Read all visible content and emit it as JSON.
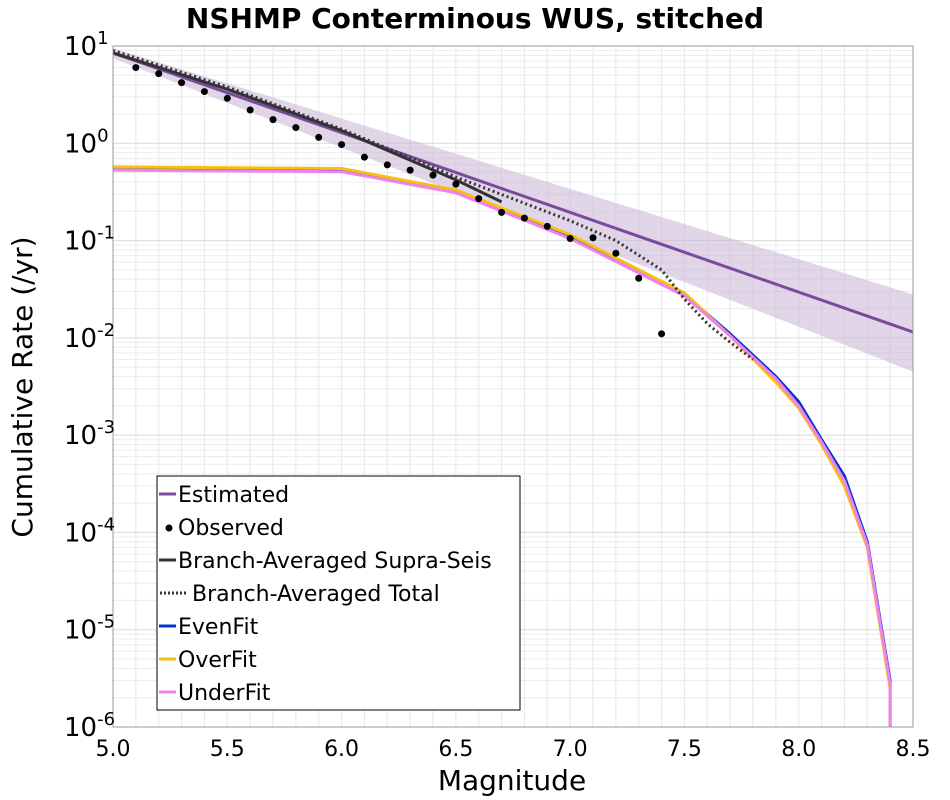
{
  "chart_data": {
    "type": "line",
    "title": "NSHMP Conterminous WUS, stitched",
    "xlabel": "Magnitude",
    "ylabel": "Cumulative Rate (/yr)",
    "xlim": [
      5.0,
      8.5
    ],
    "ylim": [
      1e-06,
      10
    ],
    "yscale": "log",
    "grid": true,
    "legend_position": "bottom-left",
    "x_ticks": [
      {
        "value": 5.0,
        "label": "5.0"
      },
      {
        "value": 5.5,
        "label": "5.5"
      },
      {
        "value": 6.0,
        "label": "6.0"
      },
      {
        "value": 6.5,
        "label": "6.5"
      },
      {
        "value": 7.0,
        "label": "7.0"
      },
      {
        "value": 7.5,
        "label": "7.5"
      },
      {
        "value": 8.0,
        "label": "8.0"
      },
      {
        "value": 8.5,
        "label": "8.5"
      }
    ],
    "y_ticks": [
      {
        "exp": 1,
        "base": "10",
        "sup": "1"
      },
      {
        "exp": 0,
        "base": "10",
        "sup": "0"
      },
      {
        "exp": -1,
        "base": "10",
        "sup": "-1"
      },
      {
        "exp": -2,
        "base": "10",
        "sup": "-2"
      },
      {
        "exp": -3,
        "base": "10",
        "sup": "-3"
      },
      {
        "exp": -4,
        "base": "10",
        "sup": "-4"
      },
      {
        "exp": -5,
        "base": "10",
        "sup": "-5"
      },
      {
        "exp": -6,
        "base": "10",
        "sup": "-6"
      }
    ],
    "estimated_band": {
      "color": "#c7b4d6",
      "x": [
        5.0,
        8.5
      ],
      "lower": [
        7.5,
        0.0045
      ],
      "upper": [
        9.5,
        0.028
      ]
    },
    "series": [
      {
        "name": "Estimated",
        "style": "solid",
        "color": "#7b4a9a",
        "x": [
          5.0,
          8.5
        ],
        "y": [
          8.5,
          0.0115
        ]
      },
      {
        "name": "Observed",
        "style": "points",
        "color": "#000000",
        "x": [
          5.1,
          5.2,
          5.3,
          5.4,
          5.5,
          5.6,
          5.7,
          5.8,
          5.9,
          6.0,
          6.1,
          6.2,
          6.3,
          6.4,
          6.5,
          6.6,
          6.7,
          6.8,
          6.9,
          7.0,
          7.1,
          7.2,
          7.3,
          7.4
        ],
        "y": [
          6.0,
          5.2,
          4.2,
          3.4,
          2.9,
          2.2,
          1.75,
          1.45,
          1.15,
          0.97,
          0.72,
          0.6,
          0.53,
          0.47,
          0.38,
          0.27,
          0.195,
          0.17,
          0.14,
          0.105,
          0.107,
          0.074,
          0.041,
          0.011
        ]
      },
      {
        "name": "Branch-Averaged Supra-Seis",
        "style": "solid",
        "color": "#333333",
        "x": [
          5.0,
          5.5,
          6.0,
          6.5,
          6.7
        ],
        "y": [
          8.5,
          3.6,
          1.35,
          0.42,
          0.25
        ]
      },
      {
        "name": "Branch-Averaged Total",
        "style": "dotted",
        "color": "#333333",
        "x": [
          5.0,
          5.5,
          6.0,
          6.5,
          7.0,
          7.2,
          7.4,
          7.5,
          7.6,
          7.7,
          7.8
        ],
        "y": [
          9.0,
          3.8,
          1.4,
          0.45,
          0.16,
          0.1,
          0.05,
          0.025,
          0.014,
          0.009,
          0.006
        ]
      },
      {
        "name": "EvenFit",
        "style": "solid",
        "color": "#0033cc",
        "x": [
          5.0,
          6.0,
          6.5,
          7.0,
          7.5,
          7.7,
          7.9,
          8.0,
          8.1,
          8.2,
          8.3,
          8.4,
          8.4
        ],
        "y": [
          0.55,
          0.53,
          0.32,
          0.11,
          0.028,
          0.011,
          0.004,
          0.0022,
          0.0009,
          0.00038,
          8e-05,
          3e-06,
          1e-06
        ]
      },
      {
        "name": "OverFit",
        "style": "solid",
        "color": "#f5c010",
        "x": [
          5.0,
          6.0,
          6.5,
          7.0,
          7.5,
          7.7,
          7.9,
          8.0,
          8.1,
          8.2,
          8.3,
          8.4,
          8.4
        ],
        "y": [
          0.57,
          0.55,
          0.33,
          0.115,
          0.029,
          0.0105,
          0.0035,
          0.0019,
          0.0008,
          0.0003,
          7e-05,
          2.5e-06,
          1e-06
        ]
      },
      {
        "name": "UnderFit",
        "style": "solid",
        "color": "#ee82ee",
        "x": [
          5.0,
          6.0,
          6.5,
          7.0,
          7.5,
          7.7,
          7.9,
          8.0,
          8.1,
          8.2,
          8.3,
          8.4,
          8.4
        ],
        "y": [
          0.53,
          0.51,
          0.31,
          0.105,
          0.027,
          0.0105,
          0.0038,
          0.002,
          0.00085,
          0.00034,
          7.5e-05,
          2.8e-06,
          1e-06
        ]
      }
    ]
  }
}
